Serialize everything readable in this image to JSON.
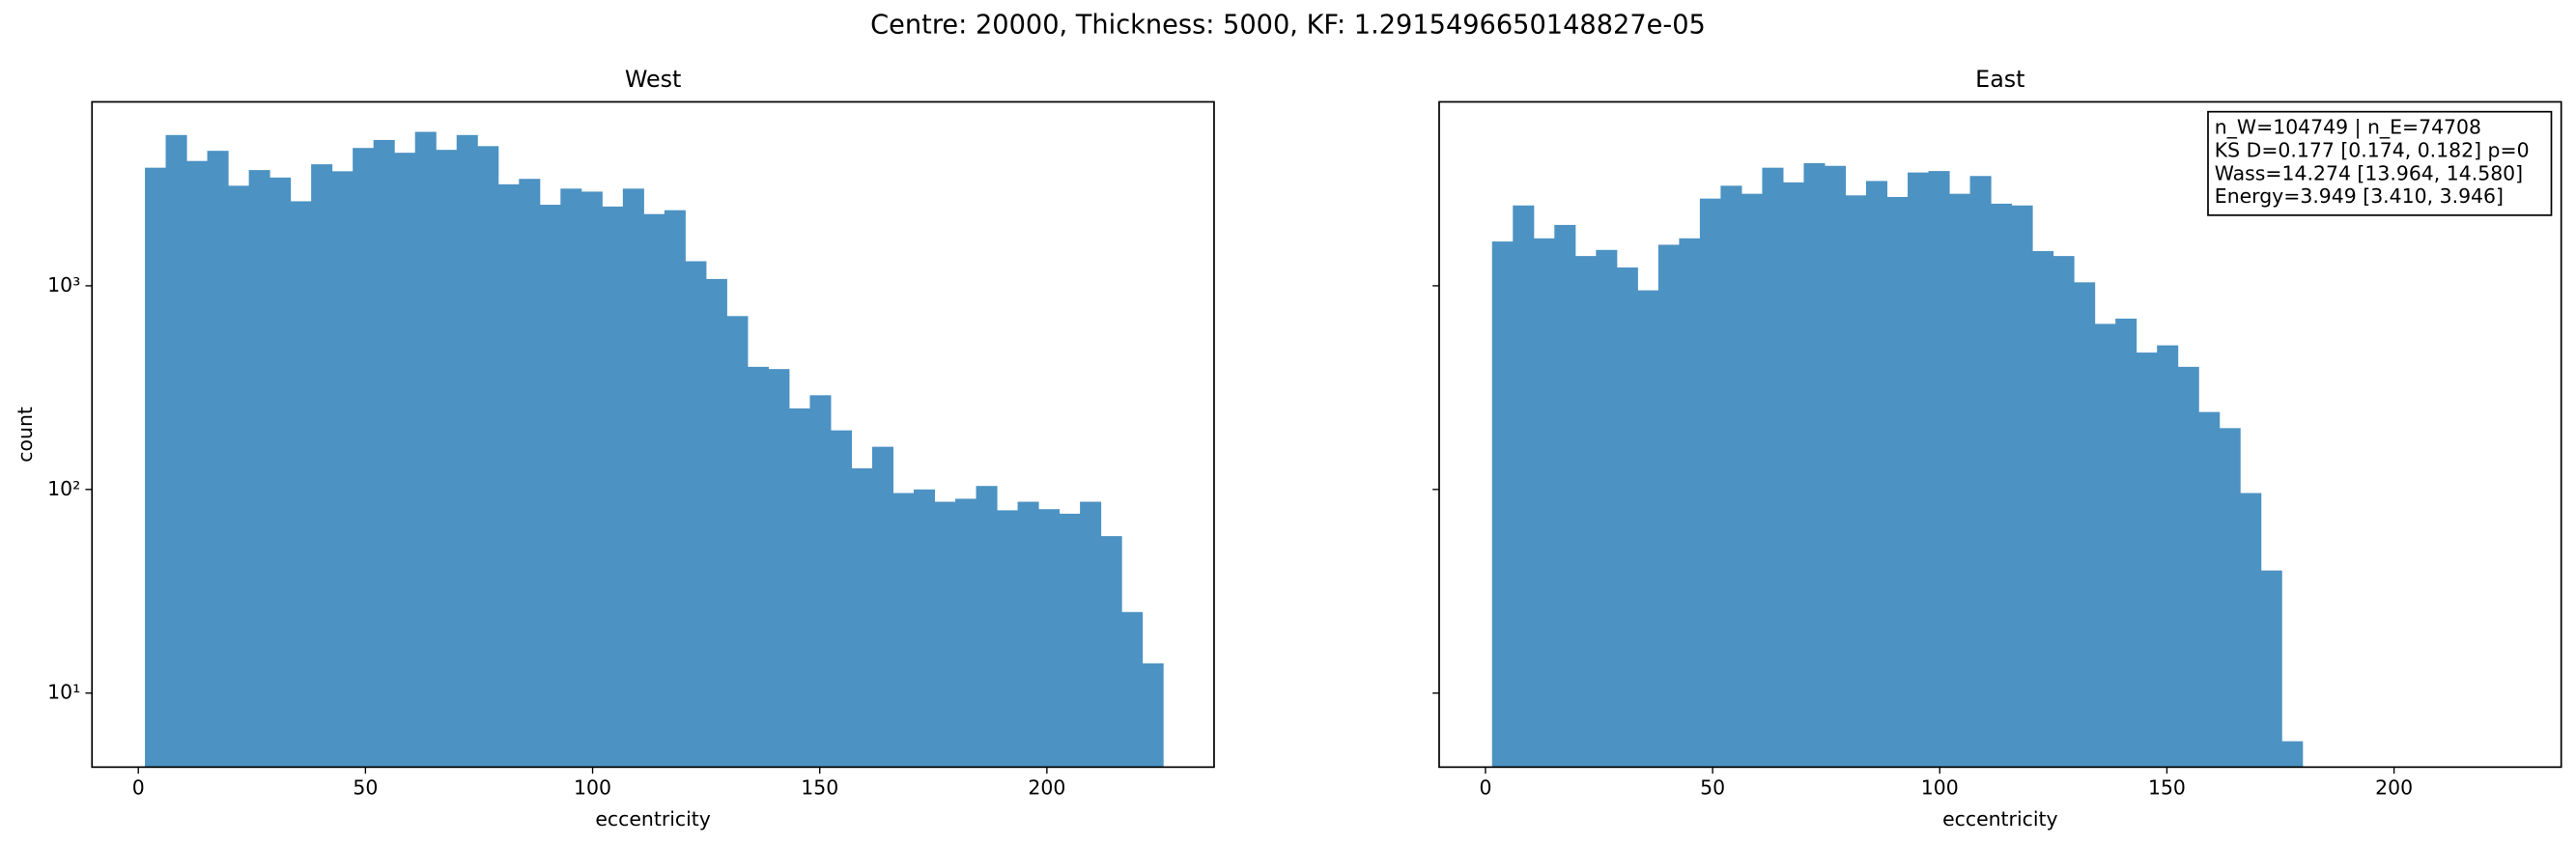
{
  "title": "Centre: 20000, Thickness: 5000, KF: 1.2915496650148827e-05",
  "chart_data": [
    {
      "type": "histogram",
      "title": "West",
      "x_label": "eccentricity",
      "y_label": "count",
      "color": "#4c92c3",
      "bins": [
        1.45,
        6.02,
        10.6,
        15.17,
        19.75,
        24.32,
        28.89,
        33.47,
        38.04,
        42.62,
        47.19,
        51.76,
        56.34,
        60.91,
        65.49,
        70.06,
        74.63,
        79.21,
        83.78,
        88.36,
        92.93,
        97.5,
        102.08,
        106.65,
        111.23,
        115.8,
        120.37,
        124.95,
        129.52,
        134.1,
        138.67,
        143.24,
        147.82,
        152.39,
        156.97,
        161.54,
        166.11,
        170.69,
        175.26,
        179.84,
        184.41,
        188.98,
        193.56,
        198.13,
        202.71,
        207.28,
        211.85,
        216.43,
        221.0,
        225.58
      ],
      "values": [
        3800,
        5500,
        4100,
        4600,
        3100,
        3700,
        3400,
        2600,
        3950,
        3650,
        4750,
        5200,
        4500,
        5700,
        4650,
        5500,
        4850,
        3150,
        3350,
        2500,
        3000,
        2900,
        2450,
        3000,
        2250,
        2350,
        1320,
        1080,
        710,
        400,
        390,
        250,
        290,
        195,
        127,
        162,
        96,
        100,
        87,
        90,
        104,
        79,
        87,
        80,
        76,
        87,
        59,
        25,
        14
      ],
      "xlim": [
        -10.2,
        236.8
      ],
      "xticks": [
        0,
        50,
        100,
        150,
        200
      ],
      "ylim": [
        4.33,
        8000
      ],
      "y_scale": "log",
      "show_ytick_labels": true,
      "yticks": [
        {
          "value": 10,
          "label": "10¹"
        },
        {
          "value": 100,
          "label": "10²"
        },
        {
          "value": 1000,
          "label": "10³"
        }
      ]
    },
    {
      "type": "histogram",
      "title": "East",
      "x_label": "eccentricity",
      "color": "#4c92c3",
      "bins": [
        1.45,
        6.02,
        10.6,
        15.17,
        19.75,
        24.32,
        28.89,
        33.47,
        38.04,
        42.62,
        47.19,
        51.76,
        56.34,
        60.91,
        65.49,
        70.06,
        74.63,
        79.21,
        83.78,
        88.36,
        92.93,
        97.5,
        102.08,
        106.65,
        111.23,
        115.8,
        120.37,
        124.95,
        129.52,
        134.1,
        138.67,
        143.24,
        147.82,
        152.39,
        156.97,
        161.54,
        166.11,
        170.69,
        175.26,
        179.84
      ],
      "values": [
        1650,
        2480,
        1710,
        1990,
        1400,
        1500,
        1230,
        950,
        1590,
        1710,
        2680,
        3100,
        2830,
        3800,
        3220,
        4000,
        3880,
        2780,
        3270,
        2730,
        3600,
        3660,
        2830,
        3460,
        2530,
        2480,
        1480,
        1400,
        1040,
        650,
        690,
        470,
        510,
        400,
        240,
        200,
        96,
        40,
        5.8
      ],
      "xlim": [
        -10.2,
        236.8
      ],
      "xticks": [
        0,
        50,
        100,
        150,
        200
      ],
      "ylim": [
        4.33,
        8000
      ],
      "y_scale": "log",
      "show_ytick_labels": false,
      "yticks": [
        10,
        100,
        1000
      ],
      "annotation": [
        "n_W=104749 | n_E=74708",
        "KS D=0.177 [0.174, 0.182]  p=0",
        "Wass=14.274 [13.964, 14.580]",
        "Energy=3.949 [3.410, 3.946]"
      ]
    }
  ]
}
